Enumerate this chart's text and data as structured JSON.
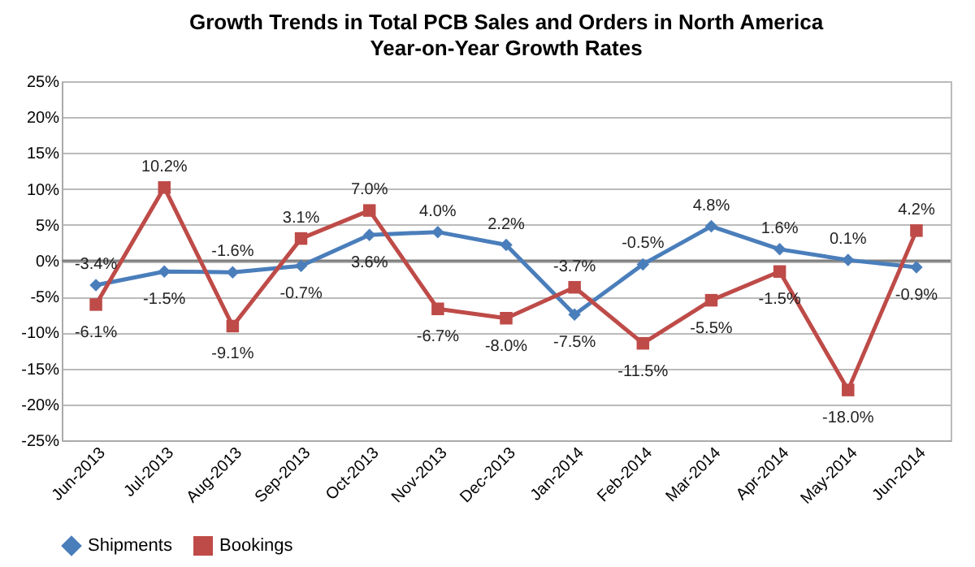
{
  "chart_data": {
    "type": "line",
    "title": "Growth Trends in Total PCB Sales and Orders in North America",
    "subtitle": "Year-on-Year Growth Rates",
    "categories": [
      "Jun-2013",
      "Jul-2013",
      "Aug-2013",
      "Sep-2013",
      "Oct-2013",
      "Nov-2013",
      "Dec-2013",
      "Jan-2014",
      "Feb-2014",
      "Mar-2014",
      "Apr-2014",
      "May-2014",
      "Jun-2014"
    ],
    "series": [
      {
        "name": "Shipments",
        "color": "#4a7ebb",
        "marker": "diamond",
        "values": [
          -3.4,
          -1.5,
          -1.6,
          -0.7,
          3.6,
          4.0,
          2.2,
          -7.5,
          -0.5,
          4.8,
          1.6,
          0.1,
          -0.9
        ],
        "value_labels": [
          "-3.4%",
          "-1.5%",
          "-1.6%",
          "-0.7%",
          "3.6%",
          "4.0%",
          "2.2%",
          "-7.5%",
          "-0.5%",
          "4.8%",
          "1.6%",
          "0.1%",
          "-0.9%"
        ]
      },
      {
        "name": "Bookings",
        "color": "#be4b48",
        "marker": "square",
        "values": [
          -6.1,
          10.2,
          -9.1,
          3.1,
          7.0,
          -6.7,
          -8.0,
          -3.7,
          -11.5,
          -5.5,
          -1.5,
          -18.0,
          4.2
        ],
        "value_labels": [
          "-6.1%",
          "10.2%",
          "-9.1%",
          "3.1%",
          "7.0%",
          "-6.7%",
          "-8.0%",
          "-3.7%",
          "-11.5%",
          "-5.5%",
          "-1.5%",
          "-18.0%",
          "4.2%"
        ]
      }
    ],
    "ylim": [
      -25,
      25
    ],
    "yticks": [
      {
        "value": -25,
        "label": "-25%"
      },
      {
        "value": -20,
        "label": "-20%"
      },
      {
        "value": -15,
        "label": "-15%"
      },
      {
        "value": -10,
        "label": "-10%"
      },
      {
        "value": -5,
        "label": "-5%"
      },
      {
        "value": 0,
        "label": "0%"
      },
      {
        "value": 5,
        "label": "5%"
      },
      {
        "value": 10,
        "label": "10%"
      },
      {
        "value": 15,
        "label": "15%"
      },
      {
        "value": 20,
        "label": "20%"
      },
      {
        "value": 25,
        "label": "25%"
      }
    ],
    "ref_lines": [
      {
        "axis": "y",
        "value": 0,
        "color": "#808080"
      }
    ],
    "grid": "y",
    "legend": "bottom",
    "line_style": "solid"
  }
}
